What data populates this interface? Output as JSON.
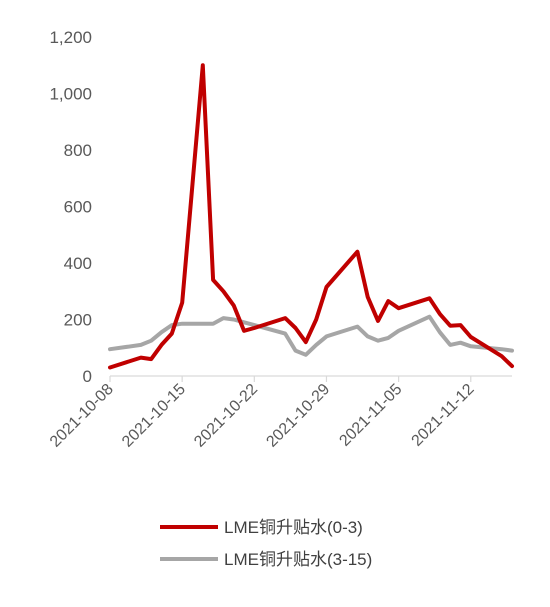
{
  "chart_data": {
    "type": "line",
    "title": "",
    "xlabel": "",
    "ylabel": "",
    "ylim": [
      0,
      1200
    ],
    "yticks": [
      0,
      200,
      400,
      600,
      800,
      1000,
      1200
    ],
    "ytick_labels": [
      "0",
      "200",
      "400",
      "600",
      "800",
      "1,000",
      "1,200"
    ],
    "xlim": [
      "2021-10-08",
      "2021-11-16"
    ],
    "xticks": [
      "2021-10-08",
      "2021-10-15",
      "2021-10-22",
      "2021-10-29",
      "2021-11-05",
      "2021-11-12"
    ],
    "grid": false,
    "legend_position": "bottom",
    "series": [
      {
        "name": "LME铜升贴水(0-3)",
        "color": "#c00000",
        "x": [
          "2021-10-08",
          "2021-10-11",
          "2021-10-12",
          "2021-10-13",
          "2021-10-14",
          "2021-10-15",
          "2021-10-16",
          "2021-10-17",
          "2021-10-18",
          "2021-10-19",
          "2021-10-20",
          "2021-10-21",
          "2021-10-22",
          "2021-10-25",
          "2021-10-26",
          "2021-10-27",
          "2021-10-28",
          "2021-10-29",
          "2021-11-01",
          "2021-11-02",
          "2021-11-03",
          "2021-11-04",
          "2021-11-05",
          "2021-11-08",
          "2021-11-09",
          "2021-11-10",
          "2021-11-11",
          "2021-11-12",
          "2021-11-15",
          "2021-11-16"
        ],
        "y": [
          30,
          65,
          60,
          110,
          150,
          260,
          680,
          1100,
          340,
          300,
          250,
          160,
          170,
          205,
          170,
          120,
          200,
          315,
          440,
          280,
          195,
          265,
          240,
          275,
          220,
          178,
          180,
          138,
          70,
          35
        ]
      },
      {
        "name": "LME铜升贴水(3-15)",
        "color": "#a6a6a6",
        "x": [
          "2021-10-08",
          "2021-10-11",
          "2021-10-12",
          "2021-10-13",
          "2021-10-14",
          "2021-10-15",
          "2021-10-16",
          "2021-10-17",
          "2021-10-18",
          "2021-10-19",
          "2021-10-20",
          "2021-10-21",
          "2021-10-22",
          "2021-10-25",
          "2021-10-26",
          "2021-10-27",
          "2021-10-28",
          "2021-10-29",
          "2021-11-01",
          "2021-11-02",
          "2021-11-03",
          "2021-11-04",
          "2021-11-05",
          "2021-11-08",
          "2021-11-09",
          "2021-11-10",
          "2021-11-11",
          "2021-11-12",
          "2021-11-15",
          "2021-11-16"
        ],
        "y": [
          95,
          110,
          125,
          155,
          180,
          185,
          185,
          185,
          185,
          205,
          200,
          190,
          180,
          150,
          90,
          75,
          110,
          140,
          175,
          140,
          125,
          135,
          160,
          210,
          155,
          110,
          118,
          105,
          95,
          90
        ]
      }
    ]
  }
}
